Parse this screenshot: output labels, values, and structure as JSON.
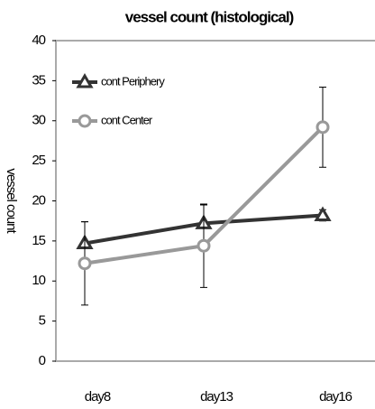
{
  "chart_data": {
    "type": "line",
    "title": "vessel count (histological)",
    "y_label": "vessel count",
    "categories": [
      "day8",
      "day13",
      "day16"
    ],
    "series": [
      {
        "name": "cont Periphery",
        "color": "#333333",
        "marker": "triangle",
        "values": [
          14.7,
          17.2,
          18.2
        ],
        "errors": [
          2.7,
          2.3,
          0.7
        ]
      },
      {
        "name": "cont Center",
        "color": "#999999",
        "marker": "circle",
        "values": [
          12.2,
          14.4,
          29.2
        ],
        "errors": [
          5.2,
          5.2,
          5.0
        ]
      }
    ],
    "ylim": [
      0,
      40
    ],
    "yticks": [
      0,
      5,
      10,
      15,
      20,
      25,
      30,
      35,
      40
    ],
    "grid": false
  }
}
